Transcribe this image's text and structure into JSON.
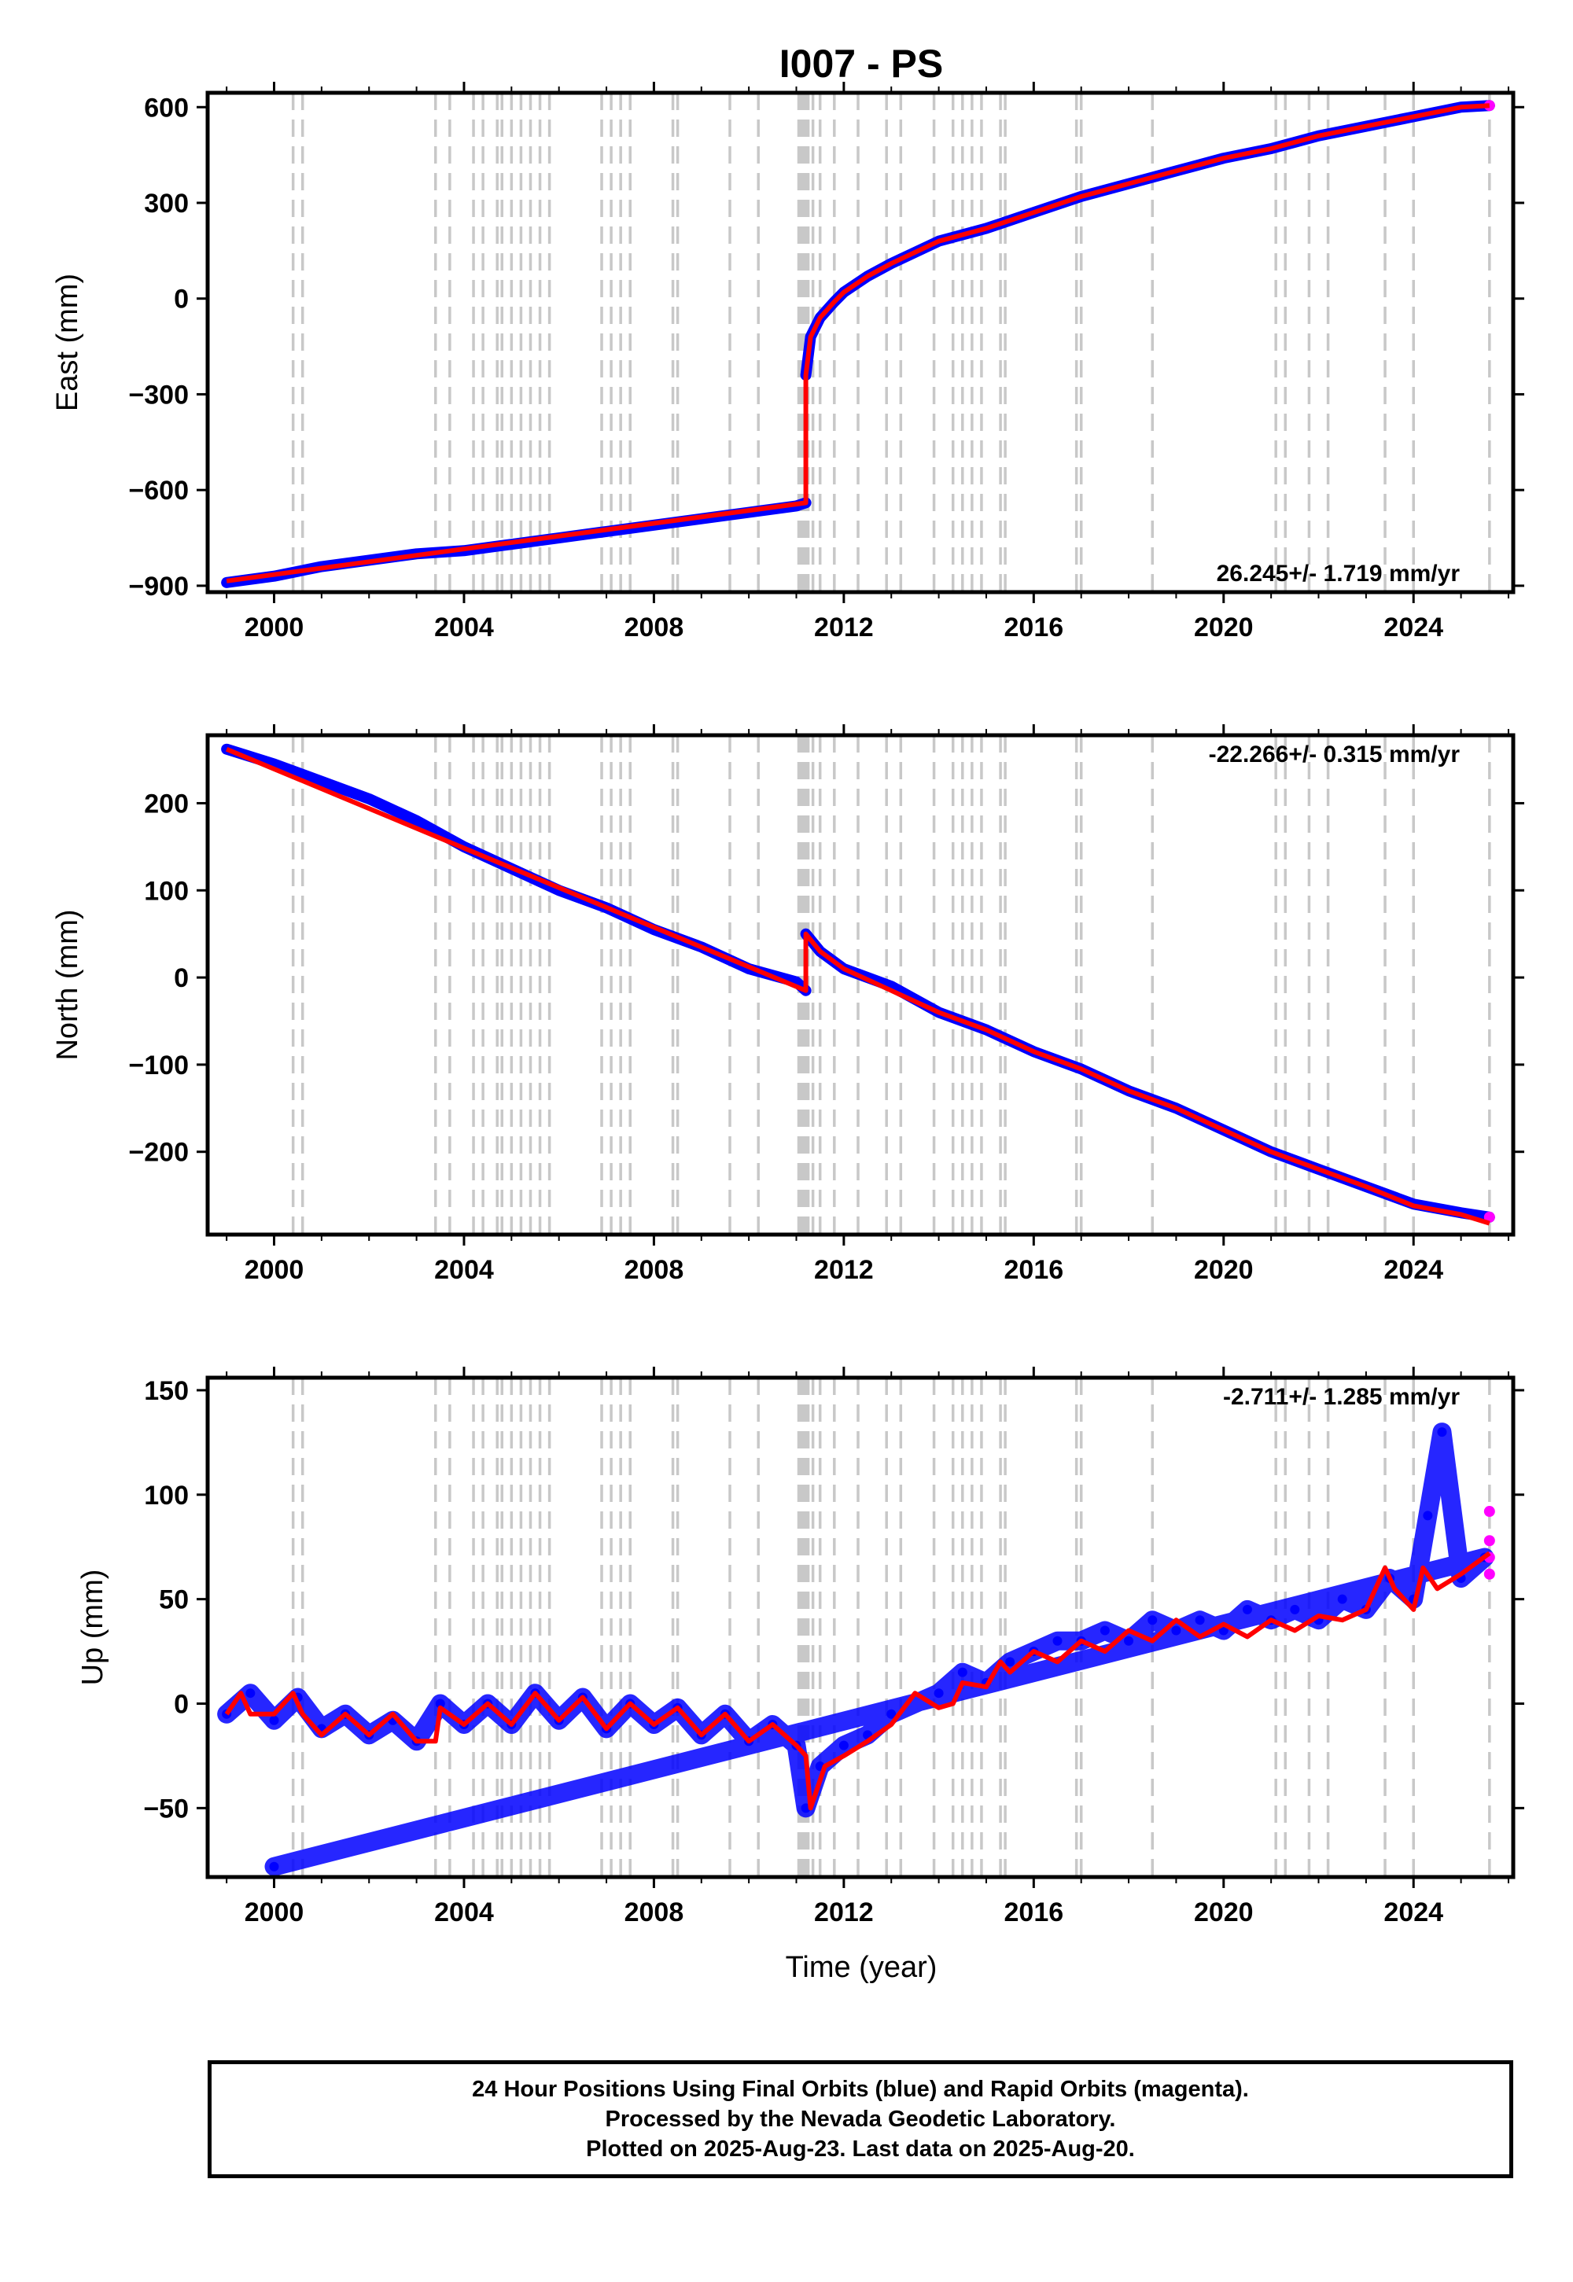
{
  "figure": {
    "title": "I007 - PS",
    "xlabel": "Time (year)",
    "footer": [
      "24 Hour Positions Using Final Orbits (blue) and Rapid Orbits (magenta).",
      "Processed by the Nevada Geodetic Laboratory.",
      "Plotted on 2025-Aug-23. Last data on 2025-Aug-20."
    ],
    "colors": {
      "final_orbits": "#0000ff",
      "rapid_orbits": "#ff00ff",
      "model": "#ff0000",
      "event_lines": "#c8c8c8"
    }
  },
  "chart_data": [
    {
      "type": "scatter",
      "title": "I007 - PS",
      "ylabel": "East (mm)",
      "xlim": [
        1998.6,
        2026.1
      ],
      "ylim": [
        -920,
        645
      ],
      "xticks": [
        2000,
        2004,
        2008,
        2012,
        2016,
        2020,
        2024
      ],
      "yticks": [
        -900,
        -600,
        -300,
        0,
        300,
        600
      ],
      "ytick_labels": [
        "−900",
        "−600",
        "−300",
        "0",
        "300",
        "600"
      ],
      "rate_label": "26.245+/- 1.719 mm/yr",
      "rate_position": "bottom-right",
      "event_lines": [
        2000.4,
        2000.6,
        2003.4,
        2003.7,
        2004.2,
        2004.4,
        2004.7,
        2004.8,
        2005.0,
        2005.2,
        2005.4,
        2005.6,
        2005.8,
        2006.9,
        2007.1,
        2007.3,
        2007.5,
        2008.4,
        2008.5,
        2009.6,
        2010.2,
        2011.05,
        2011.1,
        2011.15,
        2011.2,
        2011.25,
        2011.35,
        2011.5,
        2011.8,
        2012.3,
        2012.9,
        2013.2,
        2013.9,
        2014.3,
        2014.5,
        2014.7,
        2014.9,
        2015.3,
        2015.4,
        2016.9,
        2017.0,
        2018.5,
        2021.1,
        2021.3,
        2021.8,
        2022.2,
        2023.4,
        2024.0,
        2025.6
      ],
      "series": [
        {
          "name": "Final Orbits",
          "color": "#0000ff",
          "x": [
            1999.0,
            2000.0,
            2001.0,
            2002.0,
            2003.0,
            2004.0,
            2005.0,
            2006.0,
            2007.0,
            2008.0,
            2009.0,
            2010.0,
            2011.0,
            2011.2
          ],
          "y": [
            -890,
            -870,
            -840,
            -820,
            -800,
            -790,
            -770,
            -750,
            -730,
            -710,
            -690,
            -670,
            -650,
            -640
          ]
        },
        {
          "name": "Final Orbits (post-event)",
          "color": "#0000ff",
          "x": [
            2011.2,
            2011.3,
            2011.5,
            2011.8,
            2012.0,
            2012.5,
            2013.0,
            2014.0,
            2015.0,
            2016.0,
            2017.0,
            2018.0,
            2019.0,
            2020.0,
            2021.0,
            2022.0,
            2023.0,
            2024.0,
            2025.0,
            2025.6
          ],
          "y": [
            -240,
            -120,
            -60,
            -10,
            20,
            70,
            110,
            180,
            220,
            270,
            320,
            360,
            400,
            440,
            470,
            510,
            540,
            570,
            600,
            605
          ]
        },
        {
          "name": "Rapid Orbits",
          "color": "#ff00ff",
          "x": [
            2025.6
          ],
          "y": [
            605
          ]
        },
        {
          "name": "Model",
          "color": "#ff0000",
          "x": [
            1999.0,
            2011.2,
            2011.2,
            2011.3,
            2011.5,
            2011.8,
            2012.0,
            2012.5,
            2013.0,
            2014.0,
            2015.0,
            2016.0,
            2017.0,
            2018.0,
            2019.0,
            2020.0,
            2021.0,
            2022.0,
            2023.0,
            2024.0,
            2025.0,
            2025.6
          ],
          "y": [
            -885,
            -640,
            -240,
            -120,
            -60,
            -10,
            20,
            70,
            110,
            180,
            220,
            270,
            320,
            360,
            400,
            440,
            470,
            510,
            540,
            570,
            600,
            605
          ]
        }
      ]
    },
    {
      "type": "scatter",
      "ylabel": "North (mm)",
      "xlim": [
        1998.6,
        2026.1
      ],
      "ylim": [
        -295,
        278
      ],
      "xticks": [
        2000,
        2004,
        2008,
        2012,
        2016,
        2020,
        2024
      ],
      "yticks": [
        -200,
        -100,
        0,
        100,
        200
      ],
      "ytick_labels": [
        "−200",
        "−100",
        "0",
        "100",
        "200"
      ],
      "rate_label": "-22.266+/- 0.315 mm/yr",
      "rate_position": "top-right",
      "event_lines": [
        2000.4,
        2000.6,
        2003.4,
        2003.7,
        2004.2,
        2004.4,
        2004.7,
        2004.8,
        2005.0,
        2005.2,
        2005.4,
        2005.6,
        2005.8,
        2006.9,
        2007.1,
        2007.3,
        2007.5,
        2008.4,
        2008.5,
        2009.6,
        2010.2,
        2011.05,
        2011.1,
        2011.15,
        2011.2,
        2011.25,
        2011.35,
        2011.5,
        2011.8,
        2012.3,
        2012.9,
        2013.2,
        2013.9,
        2014.3,
        2014.5,
        2014.7,
        2014.9,
        2015.3,
        2015.4,
        2016.9,
        2017.0,
        2018.5,
        2021.1,
        2021.3,
        2021.8,
        2022.2,
        2023.4,
        2024.0,
        2025.6
      ],
      "series": [
        {
          "name": "Final Orbits",
          "color": "#0000ff",
          "x": [
            1999.0,
            2000.0,
            2001.0,
            2002.0,
            2003.0,
            2004.0,
            2005.0,
            2006.0,
            2007.0,
            2008.0,
            2009.0,
            2010.0,
            2011.0,
            2011.2
          ],
          "y": [
            262,
            245,
            225,
            205,
            180,
            150,
            125,
            100,
            80,
            55,
            35,
            10,
            -5,
            -15
          ]
        },
        {
          "name": "Final Orbits (post-event)",
          "color": "#0000ff",
          "x": [
            2011.2,
            2011.5,
            2012.0,
            2013.0,
            2014.0,
            2015.0,
            2016.0,
            2017.0,
            2018.0,
            2019.0,
            2020.0,
            2021.0,
            2022.0,
            2023.0,
            2024.0,
            2025.0,
            2025.6
          ],
          "y": [
            50,
            30,
            10,
            -10,
            -40,
            -60,
            -85,
            -105,
            -130,
            -150,
            -175,
            -200,
            -220,
            -240,
            -260,
            -270,
            -275
          ]
        },
        {
          "name": "Rapid Orbits",
          "color": "#ff00ff",
          "x": [
            2025.6
          ],
          "y": [
            -275
          ]
        },
        {
          "name": "Model",
          "color": "#ff0000",
          "x": [
            1999.0,
            2011.2,
            2011.2,
            2011.5,
            2012.0,
            2013.0,
            2014.0,
            2015.0,
            2016.0,
            2017.0,
            2018.0,
            2019.0,
            2020.0,
            2021.0,
            2022.0,
            2023.0,
            2024.0,
            2025.0,
            2025.6
          ],
          "y": [
            262,
            -15,
            50,
            30,
            10,
            -15,
            -40,
            -60,
            -85,
            -105,
            -130,
            -150,
            -175,
            -200,
            -220,
            -240,
            -262,
            -272,
            -282
          ]
        }
      ]
    },
    {
      "type": "scatter",
      "ylabel": "Up (mm)",
      "xlim": [
        1998.6,
        2026.1
      ],
      "ylim": [
        -83,
        156
      ],
      "xticks": [
        2000,
        2004,
        2008,
        2012,
        2016,
        2020,
        2024
      ],
      "yticks": [
        -50,
        0,
        50,
        100,
        150
      ],
      "ytick_labels": [
        "−50",
        "0",
        "50",
        "100",
        "150"
      ],
      "rate_label": "-2.711+/- 1.285 mm/yr",
      "rate_position": "top-right",
      "event_lines": [
        2000.4,
        2000.6,
        2003.4,
        2003.7,
        2004.2,
        2004.4,
        2004.7,
        2004.8,
        2005.0,
        2005.2,
        2005.4,
        2005.6,
        2005.8,
        2006.9,
        2007.1,
        2007.3,
        2007.5,
        2008.4,
        2008.5,
        2009.6,
        2010.2,
        2011.05,
        2011.1,
        2011.15,
        2011.2,
        2011.25,
        2011.35,
        2011.5,
        2011.8,
        2012.3,
        2012.9,
        2013.2,
        2013.9,
        2014.3,
        2014.5,
        2014.7,
        2014.9,
        2015.3,
        2015.4,
        2016.9,
        2017.0,
        2018.5,
        2021.1,
        2021.3,
        2021.8,
        2022.2,
        2023.4,
        2024.0,
        2025.6
      ],
      "series": [
        {
          "name": "Final Orbits",
          "color": "#0000ff",
          "x": [
            1999.0,
            1999.5,
            2000.0,
            2000.5,
            2001.0,
            2001.5,
            2002.0,
            2002.5,
            2003.0,
            2003.5,
            2004.0,
            2004.5,
            2005.0,
            2005.5,
            2006.0,
            2006.5,
            2007.0,
            2007.5,
            2008.0,
            2008.5,
            2009.0,
            2009.5,
            2010.0,
            2010.5,
            2011.0,
            2011.2,
            2011.5,
            2012.0,
            2012.5,
            2013.0,
            2014.0,
            2014.5,
            2015.0,
            2015.5,
            2016.0,
            2016.5,
            2017.0,
            2017.5,
            2018.0,
            2018.5,
            2019.0,
            2019.5,
            2020.0,
            2020.5,
            2021.0,
            2021.5,
            2022.0,
            2022.5,
            2023.0,
            2023.5,
            2024.0,
            2024.3,
            2024.6,
            2025.0,
            2025.5,
            2000.0
          ],
          "y": [
            -5,
            5,
            -8,
            3,
            -12,
            -5,
            -15,
            -8,
            -18,
            0,
            -10,
            0,
            -10,
            5,
            -8,
            3,
            -12,
            0,
            -10,
            -2,
            -15,
            -5,
            -18,
            -10,
            -20,
            -50,
            -30,
            -20,
            -15,
            -5,
            5,
            15,
            10,
            20,
            25,
            30,
            30,
            35,
            30,
            40,
            35,
            40,
            35,
            45,
            40,
            45,
            40,
            50,
            45,
            60,
            50,
            90,
            130,
            60,
            70,
            -78
          ]
        },
        {
          "name": "Rapid Orbits",
          "color": "#ff00ff",
          "x": [
            2025.6,
            2025.6,
            2025.6,
            2025.6
          ],
          "y": [
            62,
            70,
            78,
            92
          ]
        },
        {
          "name": "Model",
          "color": "#ff0000",
          "x": [
            1999.0,
            1999.3,
            1999.5,
            1999.8,
            2000.0,
            2000.4,
            2000.6,
            2001.0,
            2001.5,
            2002.0,
            2002.5,
            2003.0,
            2003.4,
            2003.5,
            2004.0,
            2004.5,
            2005.0,
            2005.5,
            2006.0,
            2006.5,
            2007.0,
            2007.5,
            2008.0,
            2008.5,
            2009.0,
            2009.5,
            2010.0,
            2010.5,
            2011.0,
            2011.2,
            2011.3,
            2011.6,
            2012.0,
            2012.5,
            2013.0,
            2013.5,
            2014.0,
            2014.3,
            2014.5,
            2015.0,
            2015.3,
            2015.5,
            2016.0,
            2016.5,
            2017.0,
            2017.5,
            2018.0,
            2018.5,
            2019.0,
            2019.5,
            2020.0,
            2020.5,
            2021.0,
            2021.5,
            2022.0,
            2022.5,
            2023.0,
            2023.4,
            2023.6,
            2024.0,
            2024.2,
            2024.5,
            2025.0,
            2025.6
          ],
          "y": [
            -5,
            5,
            -5,
            -5,
            -5,
            5,
            -5,
            -15,
            -5,
            -15,
            -5,
            -18,
            -18,
            -2,
            -10,
            0,
            -10,
            5,
            -8,
            3,
            -12,
            0,
            -10,
            -2,
            -15,
            -5,
            -18,
            -10,
            -20,
            -25,
            -50,
            -30,
            -25,
            -18,
            -10,
            5,
            -2,
            0,
            10,
            8,
            20,
            15,
            25,
            20,
            30,
            25,
            35,
            30,
            40,
            32,
            38,
            32,
            40,
            35,
            42,
            40,
            45,
            65,
            55,
            45,
            65,
            55,
            62,
            72
          ]
        }
      ]
    }
  ]
}
